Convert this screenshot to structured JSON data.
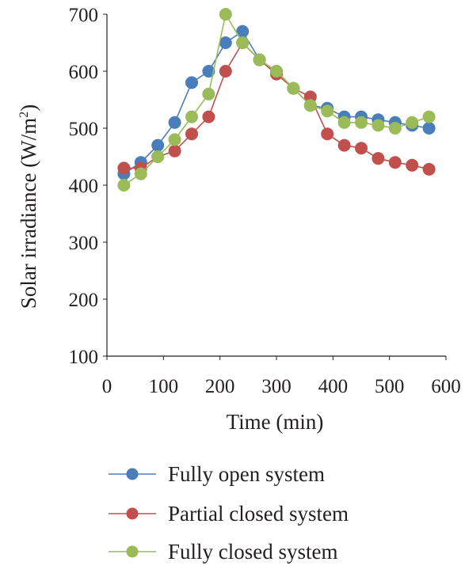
{
  "chart_data": {
    "type": "line",
    "title": "",
    "xlabel": "Time (min)",
    "ylabel_main": "Solar irradiance (W/m",
    "ylabel_sup": "2",
    "ylabel_close": ")",
    "xlim": [
      0,
      600
    ],
    "ylim": [
      100,
      700
    ],
    "xticks": [
      0,
      100,
      200,
      300,
      400,
      500,
      600
    ],
    "yticks": [
      100,
      200,
      300,
      400,
      500,
      600,
      700
    ],
    "grid": false,
    "legend_position": "bottom",
    "x": [
      30,
      60,
      90,
      120,
      150,
      180,
      210,
      240,
      270,
      300,
      330,
      360,
      390,
      420,
      450,
      480,
      510,
      540,
      570
    ],
    "series": [
      {
        "name": "Fully open system",
        "color": "#4a7ebb",
        "values": [
          420,
          440,
          470,
          510,
          580,
          600,
          650,
          670,
          620,
          600,
          570,
          540,
          535,
          520,
          520,
          515,
          510,
          505,
          500
        ]
      },
      {
        "name": "Partial closed system",
        "color": "#c0504d",
        "values": [
          430,
          430,
          450,
          460,
          490,
          520,
          600,
          650,
          620,
          595,
          570,
          555,
          490,
          470,
          465,
          447,
          440,
          435,
          428
        ]
      },
      {
        "name": "Fully closed system",
        "color": "#9bbb59",
        "values": [
          400,
          420,
          450,
          480,
          520,
          560,
          700,
          650,
          620,
          600,
          570,
          540,
          530,
          510,
          510,
          505,
          500,
          510,
          520
        ]
      }
    ]
  }
}
